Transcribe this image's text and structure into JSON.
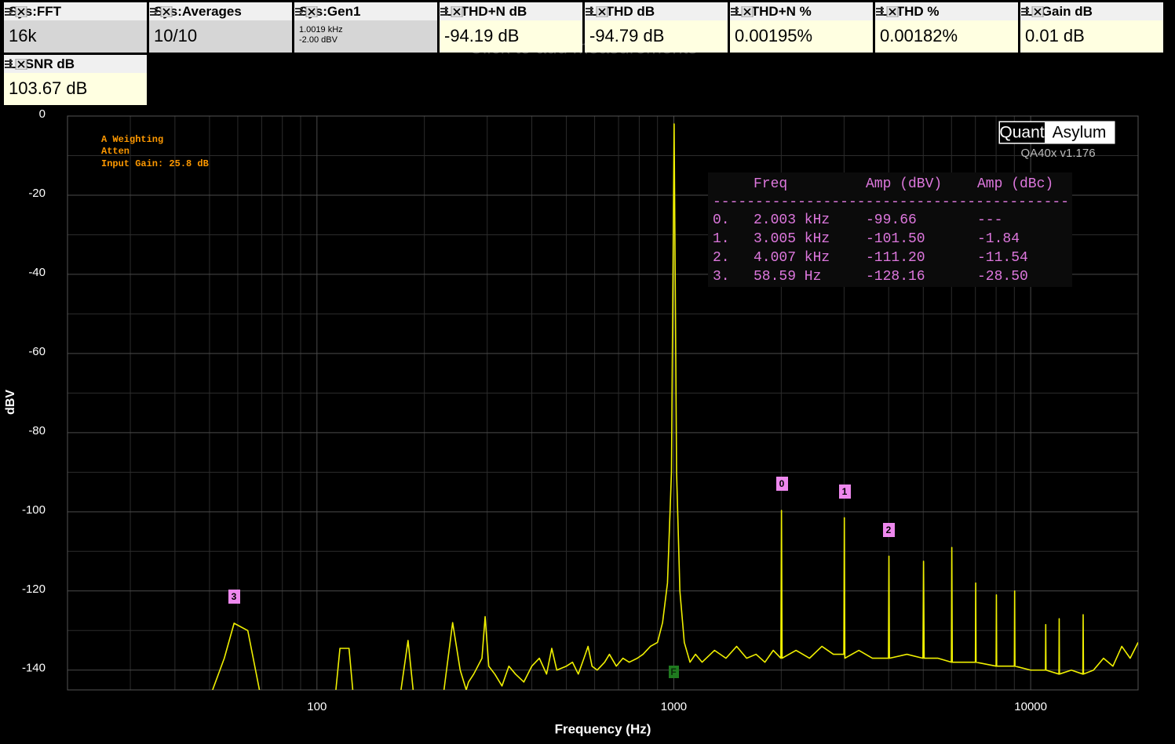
{
  "tiles": [
    {
      "title": "Sys:FFT",
      "value": "16k",
      "color": "#d6d6d6"
    },
    {
      "title": "Sys:Averages",
      "value": "10/10",
      "color": "#d6d6d6"
    },
    {
      "title": "Sys:Gen1",
      "lines": [
        "1.0019 kHz",
        "-2.00 dBV"
      ],
      "color": "#d6d6d6"
    },
    {
      "title": "L: THD+N dB",
      "value": "-94.19 dB",
      "color": "#ffffe1"
    },
    {
      "title": "L: THD dB",
      "value": "-94.79 dB",
      "color": "#ffffe1"
    },
    {
      "title": "L: THD+N %",
      "value": "0.00195%",
      "color": "#ffffe1"
    },
    {
      "title": "L: THD %",
      "value": "0.00182%",
      "color": "#ffffe1"
    },
    {
      "title": "L: Gain dB",
      "value": "0.01 dB",
      "color": "#ffffe1"
    },
    {
      "title": "L: SNR dB",
      "value": "103.67 dB",
      "color": "#ffffe1"
    }
  ],
  "watermark": "Click to add measurements",
  "chart": {
    "type": "line",
    "y_label": "dBV",
    "x_label": "Frequency (Hz)",
    "xlim": [
      20,
      20000
    ],
    "ylim": [
      -145,
      0
    ],
    "x_log": true,
    "xticks": [
      100,
      1000,
      10000
    ],
    "minor_xticks": [
      30,
      40,
      50,
      60,
      70,
      80,
      90,
      200,
      300,
      400,
      500,
      600,
      700,
      800,
      900,
      2000,
      3000,
      4000,
      5000,
      6000,
      7000,
      8000,
      9000
    ],
    "yticks": [
      0,
      -20,
      -40,
      -60,
      -80,
      -100,
      -120,
      -140
    ],
    "minor_yticks": [
      -10,
      -30,
      -50,
      -70,
      -90,
      -110,
      -130
    ],
    "grid": true,
    "color": "#f0f000",
    "x": [
      51,
      55,
      58.59,
      64,
      69,
      90,
      113,
      116,
      123,
      126,
      150,
      172,
      180,
      186,
      200,
      227,
      240,
      252,
      262,
      266,
      275,
      290,
      296,
      303,
      315,
      330,
      345,
      360,
      380,
      400,
      420,
      440,
      455,
      470,
      500,
      520,
      540,
      560,
      575,
      590,
      610,
      640,
      660,
      690,
      720,
      750,
      790,
      820,
      860,
      900,
      930,
      960,
      985,
      1001.9,
      1018,
      1040,
      1070,
      1110,
      1150,
      1200,
      1300,
      1400,
      1500,
      1600,
      1700,
      1800,
      1900,
      1995,
      2003,
      2011,
      2200,
      2400,
      2600,
      2800,
      2995,
      3005,
      3015,
      3300,
      3600,
      3995,
      4007,
      4019,
      4500,
      4990,
      5009,
      5030,
      5500,
      5995,
      6011,
      6030,
      6500,
      7000,
      7013,
      7030,
      8000,
      8015,
      8030,
      9000,
      9017,
      9035,
      10000,
      11000,
      11020,
      11040,
      12000,
      12020,
      12040,
      13000,
      14000,
      14030,
      14060,
      15000,
      16000,
      17000,
      18000,
      19000,
      20000
    ],
    "y": [
      -145,
      -137,
      -128.16,
      -130,
      -145,
      null,
      -145,
      -134.5,
      -134.5,
      -145,
      null,
      -145,
      -132.5,
      -145,
      null,
      -145,
      -128,
      -140,
      -145,
      -143,
      -141,
      -137,
      -126.5,
      -139,
      -141,
      -144,
      -139,
      -141,
      -143,
      -139,
      -137,
      -141,
      -134.5,
      -140,
      -139,
      -138,
      -141,
      -137,
      -134,
      -139,
      -140,
      -138,
      -136,
      -139,
      -137,
      -138,
      -137,
      -136,
      -134,
      -133,
      -128,
      -118,
      -90,
      -2,
      -90,
      -120,
      -133,
      -138,
      -136,
      -138,
      -135,
      -137,
      -134,
      -137,
      -136,
      -138,
      -135,
      -137,
      -99.66,
      -137,
      -135,
      -137,
      -134,
      -136,
      -136,
      -101.5,
      -137,
      -135,
      -137,
      -137,
      -111.2,
      -137,
      -136,
      -137,
      -112.5,
      -137,
      -137,
      -138,
      -109,
      -138,
      -138,
      -138,
      -118,
      -138,
      -139,
      -121,
      -139,
      -139,
      -120,
      -139,
      -140,
      -140,
      -128.5,
      -140,
      -141,
      -127,
      -141,
      -140,
      -141,
      -126,
      -141,
      -140,
      -137,
      -139,
      -134,
      -137,
      -133
    ],
    "annotations": [
      "A Weighting",
      "Atten",
      "Input Gain: 25.8 dB"
    ],
    "markers": [
      "0",
      "1",
      "2",
      "3",
      "F"
    ]
  },
  "logo": {
    "left": "Quant",
    "right": "Asylum",
    "version": "QA40x v1.176"
  },
  "table": {
    "header": [
      "Freq",
      "Amp (dBV)",
      "Amp (dBc)"
    ],
    "separator": "------------------------------------------",
    "rows": [
      [
        "0.",
        "2.003 kHz",
        "-99.66",
        "---"
      ],
      [
        "1.",
        "3.005 kHz",
        "-101.50",
        "-1.84"
      ],
      [
        "2.",
        "4.007 kHz",
        "-111.20",
        "-11.54"
      ],
      [
        "3.",
        "58.59 Hz",
        "-128.16",
        "-28.50"
      ]
    ]
  }
}
